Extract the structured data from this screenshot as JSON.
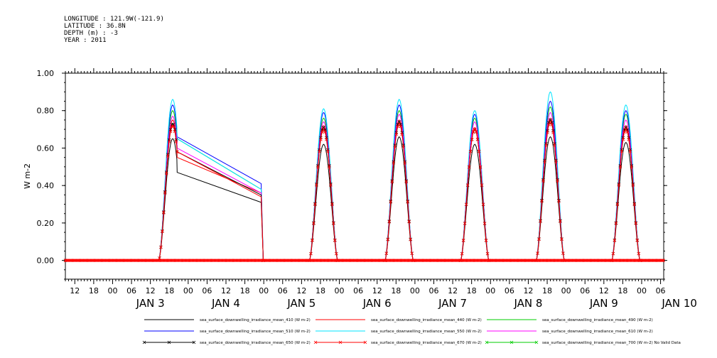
{
  "header": {
    "longitude": "LONGITUDE : 121.9W(-121.9)",
    "latitude": "LATITUDE : 36.8N",
    "depth": "DEPTH (m) : -3",
    "year": "YEAR : 2011"
  },
  "chart_data": {
    "type": "line",
    "ylabel": "W m-2",
    "ylim": [
      -0.1,
      1.0
    ],
    "yticks": [
      "0.00",
      "0.20",
      "0.40",
      "0.60",
      "0.80",
      "1.00"
    ],
    "xrange_hours": [
      "2011-01-02T09:00",
      "2011-01-10T07:00"
    ],
    "x_tick_labels": [
      "12",
      "18",
      "00",
      "06",
      "12",
      "18",
      "00",
      "06",
      "12",
      "18",
      "00",
      "06",
      "12",
      "18",
      "00",
      "06",
      "12",
      "18",
      "00",
      "06",
      "12",
      "18",
      "00",
      "06",
      "12",
      "18",
      "00",
      "06",
      "12",
      "18",
      "00",
      "06"
    ],
    "date_labels": [
      "JAN 3",
      "JAN 4",
      "JAN 5",
      "JAN 6",
      "JAN 7",
      "JAN 8",
      "JAN 9",
      "JAN 10"
    ],
    "grid": false,
    "legend_placement": "bottom",
    "days": [
      {
        "date": "2011-01-03",
        "peak": {
          "410": 0.65,
          "440": 0.75,
          "490": 0.8,
          "510": 0.83,
          "550": 0.86,
          "610": 0.77,
          "650": 0.73,
          "670": 0.72
        },
        "start": "14:40",
        "end": "23:30"
      },
      {
        "date": "2011-01-05",
        "peak": {
          "410": 0.62,
          "440": 0.72,
          "490": 0.76,
          "510": 0.79,
          "550": 0.81,
          "610": 0.74,
          "650": 0.71,
          "670": 0.7
        },
        "start": "14:30",
        "end": "23:30"
      },
      {
        "date": "2011-01-06",
        "peak": {
          "410": 0.66,
          "440": 0.75,
          "490": 0.8,
          "510": 0.83,
          "550": 0.86,
          "610": 0.78,
          "650": 0.74,
          "670": 0.73
        },
        "start": "14:30",
        "end": "23:30"
      },
      {
        "date": "2011-01-07",
        "peak": {
          "410": 0.62,
          "440": 0.71,
          "490": 0.76,
          "510": 0.78,
          "550": 0.8,
          "610": 0.74,
          "650": 0.7,
          "670": 0.7
        },
        "start": "14:30",
        "end": "23:30"
      },
      {
        "date": "2011-01-08",
        "peak": {
          "410": 0.66,
          "440": 0.76,
          "490": 0.82,
          "510": 0.85,
          "550": 0.9,
          "610": 0.79,
          "650": 0.75,
          "670": 0.74
        },
        "start": "14:30",
        "end": "23:30"
      },
      {
        "date": "2011-01-09",
        "peak": {
          "410": 0.63,
          "440": 0.72,
          "490": 0.78,
          "510": 0.8,
          "550": 0.83,
          "610": 0.75,
          "650": 0.71,
          "670": 0.7
        },
        "start": "14:30",
        "end": "23:30"
      }
    ],
    "gap_segment": {
      "from": "2011-01-03T20:30",
      "to": "2011-01-04T23:10",
      "start_values": {
        "410": 0.47,
        "440": 0.55,
        "490": 0.65,
        "510": 0.66,
        "550": 0.65,
        "610": 0.6,
        "650": 0.58,
        "670": 0.58
      },
      "end_values": {
        "410": 0.31,
        "440": 0.36,
        "490": 0.38,
        "510": 0.41,
        "550": 0.38,
        "610": 0.36,
        "650": 0.35,
        "670": 0.34
      }
    },
    "series": [
      {
        "name": "sea_surface_downwelling_irradiance_mean_410 (W m-2)",
        "key": "410",
        "color": "#000000",
        "marker": "none"
      },
      {
        "name": "sea_surface_downwelling_irradiance_mean_440 (W m-2)",
        "key": "440",
        "color": "#ff0000",
        "marker": "none"
      },
      {
        "name": "sea_surface_downwelling_irradiance_mean_490 (W m-2)",
        "key": "490",
        "color": "#00cc00",
        "marker": "none"
      },
      {
        "name": "sea_surface_downwelling_irradiance_mean_510 (W m-2)",
        "key": "510",
        "color": "#0000ff",
        "marker": "none"
      },
      {
        "name": "sea_surface_downwelling_irradiance_mean_550 (W m-2)",
        "key": "550",
        "color": "#00e5ff",
        "marker": "none"
      },
      {
        "name": "sea_surface_downwelling_irradiance_mean_610 (W m-2)",
        "key": "610",
        "color": "#ff00ff",
        "marker": "none"
      },
      {
        "name": "sea_surface_downwelling_irradiance_mean_650 (W m-2)",
        "key": "650",
        "color": "#000000",
        "marker": "x"
      },
      {
        "name": "sea_surface_downwelling_irradiance_mean_670 (W m-2)",
        "key": "670",
        "color": "#ff0000",
        "marker": "x"
      },
      {
        "name": "sea_surface_downwelling_irradiance_mean_700 (W m-2) No Valid Data",
        "key": "700",
        "color": "#00cc00",
        "marker": "x"
      }
    ]
  }
}
